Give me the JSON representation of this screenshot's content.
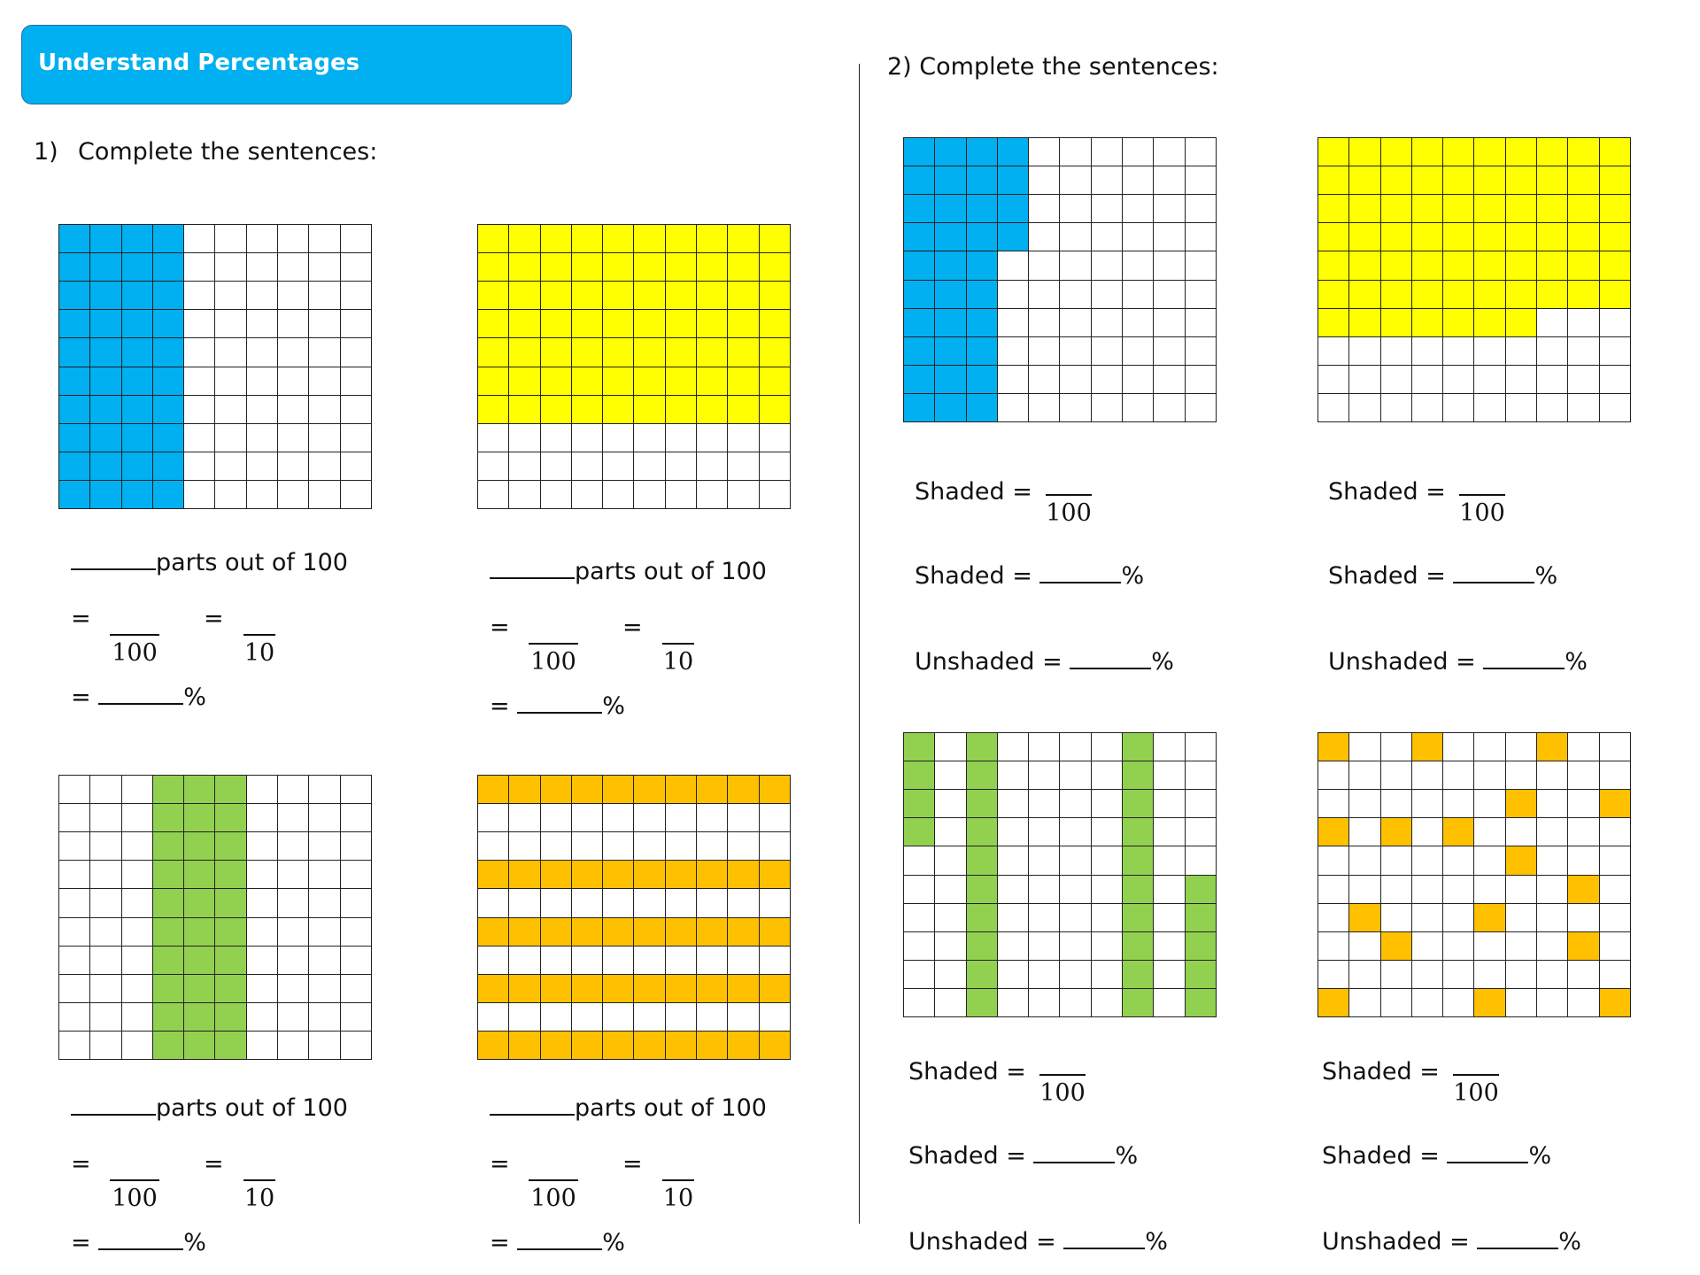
{
  "header": {
    "title": "Understand Percentages"
  },
  "q1": {
    "label": "1)",
    "text": "Complete the sentences:"
  },
  "q2": {
    "label": "2) Complete the sentences:"
  },
  "words": {
    "parts": "parts out of 100",
    "eq": "=",
    "pct": "%",
    "den100": "100",
    "den10": "10",
    "shaded": "Shaded =",
    "unshaded": "Unshaded ="
  },
  "colors": {
    "blue": "#00b0f0",
    "yellow": "#ffff00",
    "green": "#92d050",
    "orange": "#ffc000",
    "header": "#00b0f0"
  },
  "grids": [
    {
      "name": "grid-q1-blue",
      "color": "blue",
      "shaded_cells": "columns 1-4 fully shaded (40 squares)"
    },
    {
      "name": "grid-q1-yellow",
      "color": "yellow",
      "shaded_cells": "rows 1-7 fully shaded (70 squares)"
    },
    {
      "name": "grid-q1-green",
      "color": "green",
      "shaded_cells": "columns 4-6 fully shaded (30 squares)"
    },
    {
      "name": "grid-q1-orange",
      "color": "orange",
      "shaded_cells": "rows 1,4,6,8,10 fully shaded (50 squares)"
    },
    {
      "name": "grid-q2-blue",
      "color": "blue",
      "shaded_cells": "columns 1-3 fully plus column 4 rows 1-4 (34 squares)"
    },
    {
      "name": "grid-q2-yellow",
      "color": "yellow",
      "shaded_cells": "rows 1-6 fully plus row 7 columns 1-7 (67 squares)"
    },
    {
      "name": "grid-q2-green",
      "color": "green",
      "shaded_cells": "scattered column segments (37 squares)"
    },
    {
      "name": "grid-q2-orange",
      "color": "orange",
      "shaded_cells": "scattered single squares (17 squares)"
    }
  ]
}
